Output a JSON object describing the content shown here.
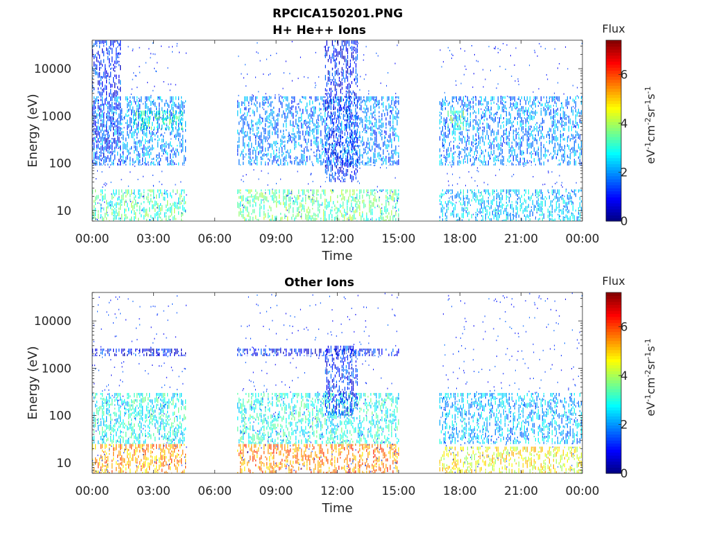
{
  "figure": {
    "title_line1": "RPCICA150201.PNG"
  },
  "chart_data": [
    {
      "type": "heatmap",
      "title": "H+ He++ Ions",
      "xlabel": "Time",
      "ylabel": "Energy (eV)",
      "x_ticks": [
        "00:00",
        "03:00",
        "06:00",
        "09:00",
        "12:00",
        "15:00",
        "18:00",
        "21:00",
        "00:00"
      ],
      "x_range_hours": [
        0,
        24
      ],
      "y_scale": "log",
      "y_ticks": [
        10,
        100,
        1000,
        10000
      ],
      "y_tick_labels": [
        "10",
        "100",
        "1000",
        "10000"
      ],
      "ylim": [
        6,
        40000
      ],
      "colorbar": {
        "label_top": "Flux",
        "label_side": "eV-1cm-2sr-1s-1",
        "range": [
          0,
          7.4
        ],
        "ticks": [
          0,
          2,
          4,
          6
        ],
        "tick_labels": [
          "0",
          "2",
          "4",
          "6"
        ],
        "colormap": "jet"
      },
      "data_gaps_hours": [
        [
          4.6,
          7.1
        ],
        [
          15.0,
          17.0
        ]
      ],
      "flux_bands": [
        {
          "t": [
            0.0,
            4.6
          ],
          "e": [
            6,
            28
          ],
          "level": 3.3
        },
        {
          "t": [
            7.1,
            15.0
          ],
          "e": [
            6,
            28
          ],
          "level": 3.5
        },
        {
          "t": [
            17.0,
            24.0
          ],
          "e": [
            6,
            28
          ],
          "level": 2.4
        },
        {
          "t": [
            0.0,
            4.6
          ],
          "e": [
            90,
            2600
          ],
          "level": 2.0
        },
        {
          "t": [
            7.1,
            15.0
          ],
          "e": [
            90,
            2600
          ],
          "level": 1.9
        },
        {
          "t": [
            17.0,
            24.0
          ],
          "e": [
            90,
            2600
          ],
          "level": 2.0
        },
        {
          "t": [
            0.0,
            1.4
          ],
          "e": [
            90,
            40000
          ],
          "level": 1.2
        },
        {
          "t": [
            11.4,
            13.0
          ],
          "e": [
            40,
            40000
          ],
          "level": 1.1
        },
        {
          "t": [
            2.0,
            4.4
          ],
          "e": [
            500,
            1300
          ],
          "level": 3.2
        },
        {
          "t": [
            17.4,
            18.2
          ],
          "e": [
            500,
            1300
          ],
          "level": 3.4
        }
      ]
    },
    {
      "type": "heatmap",
      "title": "Other Ions",
      "xlabel": "Time",
      "ylabel": "Energy (eV)",
      "x_ticks": [
        "00:00",
        "03:00",
        "06:00",
        "09:00",
        "12:00",
        "15:00",
        "18:00",
        "21:00",
        "00:00"
      ],
      "x_range_hours": [
        0,
        24
      ],
      "y_scale": "log",
      "y_ticks": [
        10,
        100,
        1000,
        10000
      ],
      "y_tick_labels": [
        "10",
        "100",
        "1000",
        "10000"
      ],
      "ylim": [
        6,
        40000
      ],
      "colorbar": {
        "label_top": "Flux",
        "label_side": "eV-1cm-2sr-1s-1",
        "range": [
          0,
          7.4
        ],
        "ticks": [
          0,
          2,
          4,
          6
        ],
        "tick_labels": [
          "0",
          "2",
          "4",
          "6"
        ],
        "colormap": "jet"
      },
      "data_gaps_hours": [
        [
          4.6,
          7.1
        ],
        [
          15.0,
          17.0
        ]
      ],
      "flux_bands": [
        {
          "t": [
            0.0,
            4.6
          ],
          "e": [
            6,
            25
          ],
          "level": 5.3
        },
        {
          "t": [
            7.1,
            15.0
          ],
          "e": [
            6,
            25
          ],
          "level": 5.5
        },
        {
          "t": [
            17.0,
            24.0
          ],
          "e": [
            6,
            22
          ],
          "level": 4.6
        },
        {
          "t": [
            0.0,
            4.6
          ],
          "e": [
            25,
            300
          ],
          "level": 2.9
        },
        {
          "t": [
            7.1,
            15.0
          ],
          "e": [
            25,
            300
          ],
          "level": 3.0
        },
        {
          "t": [
            17.0,
            24.0
          ],
          "e": [
            25,
            300
          ],
          "level": 2.3
        },
        {
          "t": [
            11.4,
            13.0
          ],
          "e": [
            100,
            3000
          ],
          "level": 1.2
        },
        {
          "t": [
            0.0,
            4.6
          ],
          "e": [
            1800,
            2600
          ],
          "level": 1.0
        },
        {
          "t": [
            7.1,
            15.0
          ],
          "e": [
            1800,
            2600
          ],
          "level": 1.0
        }
      ]
    }
  ]
}
